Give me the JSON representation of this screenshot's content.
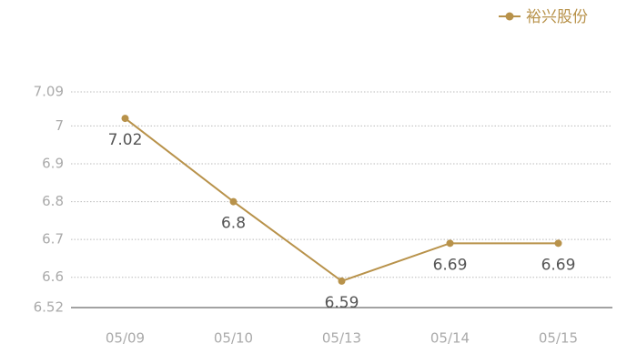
{
  "chart_data": {
    "type": "line",
    "categories": [
      "05/09",
      "05/10",
      "05/13",
      "05/14",
      "05/15"
    ],
    "series": [
      {
        "name": "裕兴股份",
        "color": "#b8924a",
        "values": [
          7.02,
          6.8,
          6.59,
          6.69,
          6.69
        ]
      }
    ],
    "ylim": [
      6.52,
      7.09
    ],
    "yticks": [
      6.52,
      6.6,
      6.7,
      6.8,
      6.9,
      7,
      7.09
    ],
    "grid": true,
    "legend": "top-right"
  }
}
